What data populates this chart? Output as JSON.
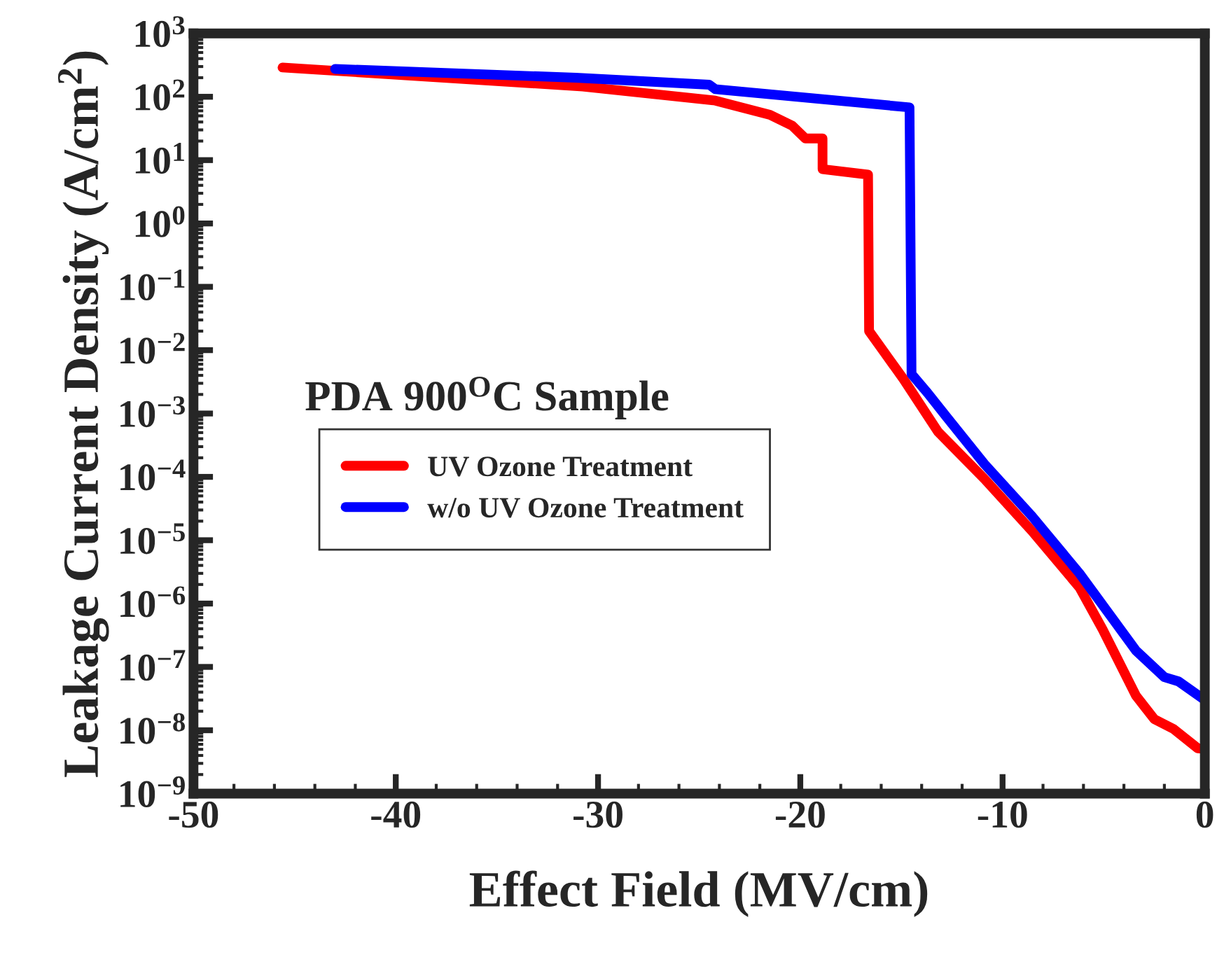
{
  "chart_data": {
    "type": "line",
    "xlabel": "Effect Field (MV/cm)",
    "ylabel": "Leakage Current Density (A/cm$^{2}$)",
    "log": "y",
    "grid": false,
    "legend": "center left",
    "line_style": "solid",
    "marker": "none",
    "xlim": [
      -50,
      0
    ],
    "xticks": [
      {
        "value": -50,
        "label": "-50"
      },
      {
        "value": -40,
        "label": "-40"
      },
      {
        "value": -30,
        "label": "-30"
      },
      {
        "value": -20,
        "label": "-20"
      },
      {
        "value": -10,
        "label": "-10"
      },
      0
    ],
    "ylim": [
      1e-09,
      1000
    ],
    "yticks": [
      {
        "value": 1000,
        "label": "10$^{3}$"
      },
      {
        "value": 100,
        "label": "10$^{2}$"
      },
      {
        "value": 10,
        "label": "10$^{1}$"
      },
      {
        "value": 1,
        "label": "10$^{0}$"
      },
      {
        "value": 0.1,
        "label": "10$^{−1}$"
      },
      {
        "value": 0.01,
        "label": "10$^{−2}$"
      },
      {
        "value": 0.001,
        "label": "10$^{−3}$"
      },
      {
        "value": 0.0001,
        "label": "10$^{−4}$"
      },
      {
        "value": 1e-05,
        "label": "10$^{−5}$"
      },
      {
        "value": 1e-06,
        "label": "10$^{−6}$"
      },
      {
        "value": 1e-07,
        "label": "10$^{−7}$"
      },
      {
        "value": 1e-08,
        "label": "10$^{−8}$"
      },
      {
        "value": 1e-09,
        "label": "10$^{−9}$"
      }
    ],
    "annotations": [
      "PDA 900$^{O}$C Sample"
    ],
    "series": [
      {
        "name": "UV Ozone Treatment",
        "color": "#ff0000",
        "x": [
          -45.6,
          -30.75,
          -24.2,
          -21.5,
          -20.4,
          -19.75,
          -18.9,
          -18.9,
          -16.65,
          -16.6,
          -14.9,
          -13.2,
          -10.9,
          -8.55,
          -6.2,
          -5.05,
          -3.4,
          -2.5,
          -1.55,
          -0.35,
          0
        ],
        "values": [
          290,
          145,
          87,
          52,
          35,
          22,
          22,
          7.2,
          5.9,
          0.02,
          0.0035,
          0.00052,
          9.3e-05,
          1.4e-05,
          1.8e-06,
          3.9e-07,
          3.5e-08,
          1.5e-08,
          1.05e-08,
          5.2e-09,
          5.1e-09
        ]
      },
      {
        "name": "w/o UV Ozone Treatment",
        "color": "#0000ff",
        "x": [
          -43,
          -31.1,
          -24.5,
          -24.2,
          -14.6,
          -14.5,
          -13.7,
          -12.75,
          -10.9,
          -8.55,
          -6.2,
          -3.4,
          -2.0,
          -1.3,
          0
        ],
        "values": [
          275,
          200,
          155,
          132,
          68,
          0.0042,
          0.0021,
          0.00087,
          0.00016,
          2.4e-05,
          3e-06,
          1.8e-07,
          6.9e-08,
          5.9e-08,
          3e-08
        ]
      }
    ]
  }
}
